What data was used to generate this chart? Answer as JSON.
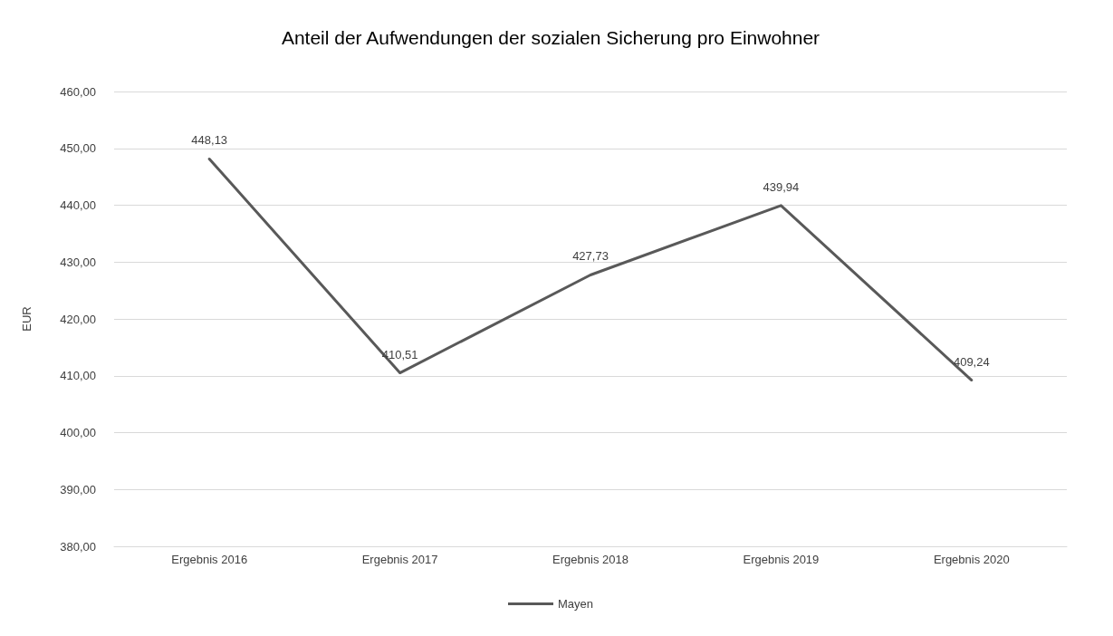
{
  "chart_data": {
    "type": "line",
    "title": "Anteil der Aufwendungen der sozialen Sicherung pro Einwohner",
    "ylabel": "EUR",
    "categories": [
      "Ergebnis 2016",
      "Ergebnis 2017",
      "Ergebnis 2018",
      "Ergebnis 2019",
      "Ergebnis 2020"
    ],
    "series": [
      {
        "name": "Mayen",
        "color": "#595959",
        "values": [
          448.13,
          410.51,
          427.73,
          439.94,
          409.24
        ],
        "value_labels": [
          "448,13",
          "410,51",
          "427,73",
          "439,94",
          "409,24"
        ]
      }
    ],
    "ylim": [
      380,
      460
    ],
    "yticks": [
      {
        "value": 380,
        "label": "380,00"
      },
      {
        "value": 390,
        "label": "390,00"
      },
      {
        "value": 400,
        "label": "400,00"
      },
      {
        "value": 410,
        "label": "410,00"
      },
      {
        "value": 420,
        "label": "420,00"
      },
      {
        "value": 430,
        "label": "430,00"
      },
      {
        "value": 440,
        "label": "440,00"
      },
      {
        "value": 450,
        "label": "450,00"
      },
      {
        "value": 460,
        "label": "460,00"
      }
    ],
    "grid": "y",
    "legend": "bottom",
    "marker": "none",
    "line_style": "solid"
  }
}
